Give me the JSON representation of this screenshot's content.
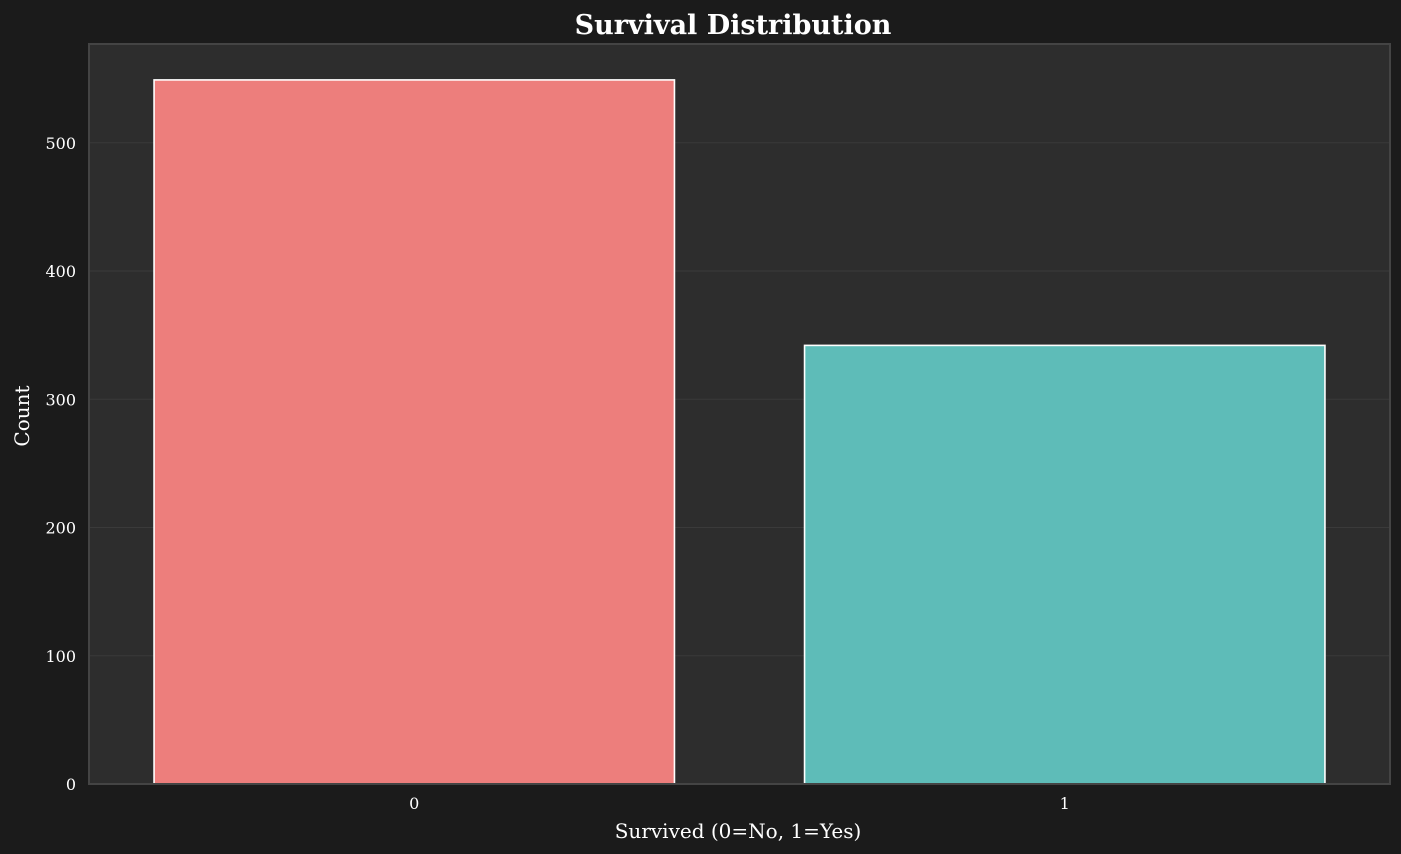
{
  "chart_data": {
    "type": "bar",
    "title": "Survival Distribution",
    "xlabel": "Survived (0=No, 1=Yes)",
    "ylabel": "Count",
    "categories": [
      "0",
      "1"
    ],
    "values": [
      549,
      342
    ],
    "ylim": [
      0,
      577
    ],
    "yticks": [
      0,
      100,
      200,
      300,
      400,
      500
    ],
    "grid": true,
    "legend": "none",
    "colors": {
      "bars": [
        "#ed7e7c",
        "#5ebcb8"
      ],
      "bar_edge": "#ffffff",
      "figure_background": "#1b1b1b",
      "plot_background": "#2d2d2d",
      "frame": "#444444",
      "grid": "#3a3a3a",
      "text": "#ffffff"
    }
  }
}
